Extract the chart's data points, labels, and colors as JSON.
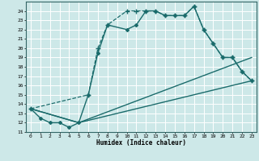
{
  "xlabel": "Humidex (Indice chaleur)",
  "background_color": "#cde8e8",
  "grid_color": "#ffffff",
  "line_color": "#1a6b6b",
  "xlim": [
    -0.5,
    23.5
  ],
  "ylim": [
    11,
    25
  ],
  "xticks": [
    0,
    1,
    2,
    3,
    4,
    5,
    6,
    7,
    8,
    9,
    10,
    11,
    12,
    13,
    14,
    15,
    16,
    17,
    18,
    19,
    20,
    21,
    22,
    23
  ],
  "yticks": [
    11,
    12,
    13,
    14,
    15,
    16,
    17,
    18,
    19,
    20,
    21,
    22,
    23,
    24
  ],
  "series": [
    {
      "x": [
        0,
        1,
        2,
        3,
        4,
        5,
        6,
        7,
        8,
        10,
        11,
        12,
        13,
        14,
        15,
        16,
        17,
        18,
        19,
        20,
        21,
        22,
        23
      ],
      "y": [
        13.5,
        12.5,
        12,
        12,
        11.5,
        12,
        15,
        19.5,
        22.5,
        22,
        22.5,
        24,
        24,
        23.5,
        23.5,
        23.5,
        24.5,
        22,
        20.5,
        19,
        19,
        17.5,
        16.5
      ],
      "style": "-",
      "marker": "D",
      "markersize": 2.0,
      "linewidth": 1.0
    },
    {
      "x": [
        0,
        5,
        23
      ],
      "y": [
        13.5,
        12,
        16.5
      ],
      "style": "-",
      "marker": null,
      "linewidth": 1.0
    },
    {
      "x": [
        0,
        5,
        23
      ],
      "y": [
        13.5,
        12,
        19.0
      ],
      "style": "-",
      "marker": null,
      "linewidth": 1.0
    },
    {
      "x": [
        0,
        6,
        7,
        8,
        10,
        11,
        12,
        13,
        14,
        15,
        16,
        17,
        18,
        19,
        20,
        21,
        22,
        23
      ],
      "y": [
        13.5,
        15,
        20,
        22.5,
        24,
        24,
        24,
        24,
        23.5,
        23.5,
        23.5,
        24.5,
        22,
        20.5,
        19,
        19,
        17.5,
        16.5
      ],
      "style": "--",
      "marker": "+",
      "markersize": 4,
      "linewidth": 0.9
    }
  ]
}
